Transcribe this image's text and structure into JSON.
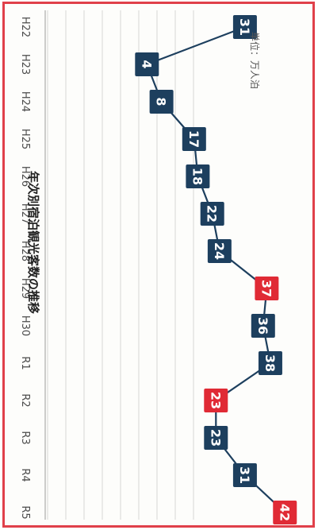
{
  "chart_data": {
    "type": "line",
    "title": "年次別宿泊観光客数の推移",
    "unit_note": "単位：万人泊",
    "x": [
      "H22",
      "H23",
      "H24",
      "H25",
      "H26",
      "H27",
      "H28",
      "H29",
      "H30",
      "R1",
      "R2",
      "R3",
      "R4",
      "R5"
    ],
    "values": [
      31,
      4,
      8,
      17,
      18,
      22,
      24,
      37,
      36,
      38,
      23,
      23,
      31,
      42
    ],
    "highlight": [
      false,
      false,
      false,
      false,
      false,
      false,
      false,
      true,
      false,
      false,
      true,
      false,
      false,
      true
    ],
    "ylim": [
      0,
      45
    ],
    "orientation": "rotated-90-clockwise",
    "colors": {
      "normal": "#1d3f5e",
      "highlight": "#e02a35",
      "line": "#1d3f5e",
      "grid": "#d6d6d6",
      "border": "#e0404a"
    },
    "grid": true
  }
}
